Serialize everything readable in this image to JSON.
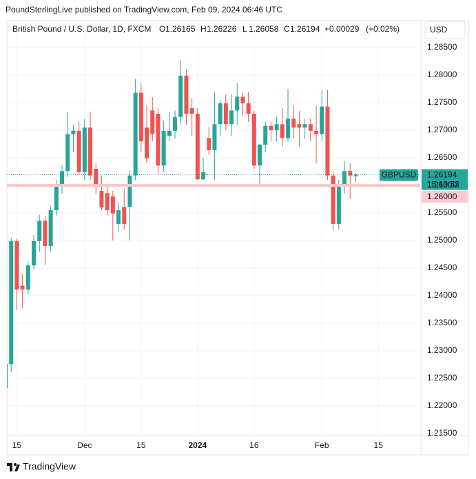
{
  "header": {
    "published": "PoundSterlingLive published on TradingView.com, Feb 09, 2024 06:46 UTC"
  },
  "footer": {
    "brand": "TradingView"
  },
  "chart_data": {
    "type": "candlestick",
    "title": "British Pound / U.S. Dollar, 1D, FXCM",
    "symbol": "GBPUSD",
    "currency": "USD",
    "ohlc_letters": [
      "O",
      "H",
      "L",
      "C"
    ],
    "change": {
      "value": 0.00029,
      "label": "+0.00029"
    },
    "change_pct": {
      "value": 0.02,
      "label": "(+0.02%)"
    },
    "countdown": "15:13:53",
    "price_line": {
      "value": 1.26,
      "label": "1.26000"
    },
    "up_color": "#26a69a",
    "down_color": "#ef5350",
    "grid": true,
    "open": [
      1.2232,
      1.2276,
      1.2499,
      1.2418,
      1.2411,
      1.2455,
      1.2499,
      1.2536,
      1.249,
      1.2555,
      1.2598,
      1.2626,
      1.2693,
      1.2699,
      1.2624,
      1.2705,
      1.263,
      1.259,
      1.2586,
      1.258,
      1.253,
      1.2561,
      1.2561,
      1.2618,
      1.2768,
      1.2705,
      1.2736,
      1.273,
      1.2636,
      1.269,
      1.2699,
      1.2724,
      1.2799,
      1.274,
      1.273,
      1.2611,
      1.2686,
      1.2664,
      1.2711,
      1.2749,
      1.2711,
      1.2736,
      1.2761,
      1.2749,
      1.273,
      1.2636,
      1.2674,
      1.2708,
      1.27,
      1.2711,
      1.2686,
      1.2721,
      1.2711,
      1.2705,
      1.2711,
      1.2699,
      1.2693,
      1.2743,
      1.2618,
      1.253,
      1.2599,
      1.2626,
      1.26165
    ],
    "high": [
      1.2286,
      1.2505,
      1.2503,
      1.244,
      1.2462,
      1.251,
      1.2547,
      1.2545,
      1.2562,
      1.261,
      1.2637,
      1.2733,
      1.271,
      1.2716,
      1.272,
      1.2734,
      1.264,
      1.2618,
      1.26,
      1.259,
      1.257,
      1.2595,
      1.2628,
      1.2793,
      1.2785,
      1.2745,
      1.276,
      1.274,
      1.2717,
      1.2733,
      1.2736,
      1.2828,
      1.281,
      1.2758,
      1.274,
      1.265,
      1.2706,
      1.277,
      1.2755,
      1.2765,
      1.2765,
      1.2785,
      1.2768,
      1.277,
      1.2735,
      1.2675,
      1.2715,
      1.2715,
      1.2725,
      1.274,
      1.2775,
      1.2745,
      1.2735,
      1.272,
      1.2722,
      1.2745,
      1.2773,
      1.2773,
      1.2625,
      1.261,
      1.2645,
      1.264,
      1.26226
    ],
    "low": [
      1.2224,
      1.2261,
      1.2374,
      1.2378,
      1.2402,
      1.2448,
      1.248,
      1.2455,
      1.248,
      1.2545,
      1.2585,
      1.2615,
      1.266,
      1.262,
      1.261,
      1.261,
      1.2585,
      1.2555,
      1.2545,
      1.25,
      1.2515,
      1.252,
      1.25,
      1.261,
      1.266,
      1.264,
      1.268,
      1.262,
      1.2625,
      1.268,
      1.2685,
      1.271,
      1.271,
      1.269,
      1.261,
      1.261,
      1.2655,
      1.261,
      1.269,
      1.27,
      1.269,
      1.271,
      1.2725,
      1.2715,
      1.263,
      1.26,
      1.266,
      1.268,
      1.268,
      1.267,
      1.268,
      1.2685,
      1.267,
      1.2685,
      1.268,
      1.264,
      1.268,
      1.261,
      1.2518,
      1.252,
      1.2585,
      1.2575,
      1.26058
    ],
    "close": [
      1.2276,
      1.2499,
      1.2411,
      1.2411,
      1.2455,
      1.2499,
      1.2536,
      1.249,
      1.2555,
      1.2598,
      1.2626,
      1.2693,
      1.2699,
      1.2624,
      1.2705,
      1.2618,
      1.2599,
      1.256,
      1.2555,
      1.2549,
      1.2555,
      1.253,
      1.2618,
      1.2768,
      1.268,
      1.2649,
      1.2693,
      1.2636,
      1.2699,
      1.2699,
      1.2724,
      1.2799,
      1.273,
      1.273,
      1.2611,
      1.2624,
      1.2664,
      1.2711,
      1.2749,
      1.2711,
      1.2736,
      1.2761,
      1.2749,
      1.273,
      1.2636,
      1.2674,
      1.2708,
      1.27,
      1.2711,
      1.2686,
      1.2721,
      1.2705,
      1.2705,
      1.2711,
      1.2699,
      1.2693,
      1.2743,
      1.2618,
      1.253,
      1.2599,
      1.2626,
      1.2618,
      1.26194
    ],
    "xlim": [
      0.24,
      73.41
    ],
    "xticks": [
      {
        "value": 2,
        "label": "15"
      },
      {
        "value": 14,
        "label": "Dec"
      },
      {
        "value": 24,
        "label": "15"
      },
      {
        "value": 34,
        "label": "2024"
      },
      {
        "value": 44,
        "label": "16"
      },
      {
        "value": 56,
        "label": "Feb"
      },
      {
        "value": 66,
        "label": "15"
      }
    ],
    "ylim": [
      1.21463,
      1.28988
    ],
    "yticks": [
      {
        "value": 1.285,
        "label": "1.28500"
      },
      {
        "value": 1.28,
        "label": "1.28000"
      },
      {
        "value": 1.275,
        "label": "1.27500"
      },
      {
        "value": 1.27,
        "label": "1.27000"
      },
      {
        "value": 1.265,
        "label": "1.26500"
      },
      {
        "value": 1.26,
        "label": "1.26000"
      },
      {
        "value": 1.255,
        "label": "1.25500"
      },
      {
        "value": 1.25,
        "label": "1.25000"
      },
      {
        "value": 1.245,
        "label": "1.24500"
      },
      {
        "value": 1.24,
        "label": "1.24000"
      },
      {
        "value": 1.235,
        "label": "1.23500"
      },
      {
        "value": 1.23,
        "label": "1.23000"
      },
      {
        "value": 1.225,
        "label": "1.22500"
      },
      {
        "value": 1.22,
        "label": "1.22000"
      },
      {
        "value": 1.215,
        "label": "1.21500"
      }
    ]
  }
}
